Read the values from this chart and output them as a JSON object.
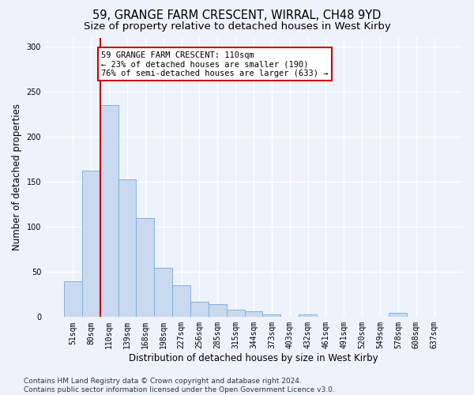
{
  "title": "59, GRANGE FARM CRESCENT, WIRRAL, CH48 9YD",
  "subtitle": "Size of property relative to detached houses in West Kirby",
  "xlabel": "Distribution of detached houses by size in West Kirby",
  "ylabel": "Number of detached properties",
  "bar_values": [
    40,
    162,
    235,
    153,
    110,
    55,
    35,
    17,
    14,
    8,
    6,
    3,
    0,
    3,
    0,
    0,
    0,
    0,
    5,
    0,
    0
  ],
  "bar_labels": [
    "51sqm",
    "80sqm",
    "110sqm",
    "139sqm",
    "168sqm",
    "198sqm",
    "227sqm",
    "256sqm",
    "285sqm",
    "315sqm",
    "344sqm",
    "373sqm",
    "403sqm",
    "432sqm",
    "461sqm",
    "491sqm",
    "520sqm",
    "549sqm",
    "578sqm",
    "608sqm",
    "637sqm"
  ],
  "highlight_bar_index": 2,
  "bar_color": "#c9d9ef",
  "bar_edge_color": "#7baad4",
  "highlight_line_color": "#cc0000",
  "annotation_text": "59 GRANGE FARM CRESCENT: 110sqm\n← 23% of detached houses are smaller (190)\n76% of semi-detached houses are larger (633) →",
  "annotation_box_facecolor": "#ffffff",
  "annotation_box_edgecolor": "#cc0000",
  "ylim": [
    0,
    310
  ],
  "yticks": [
    0,
    50,
    100,
    150,
    200,
    250,
    300
  ],
  "footer": "Contains HM Land Registry data © Crown copyright and database right 2024.\nContains public sector information licensed under the Open Government Licence v3.0.",
  "background_color": "#eef2fb",
  "grid_color": "#ffffff",
  "title_fontsize": 10.5,
  "subtitle_fontsize": 9.5,
  "ylabel_fontsize": 8.5,
  "xlabel_fontsize": 8.5,
  "tick_fontsize": 7,
  "footer_fontsize": 6.5,
  "annotation_fontsize": 7.5
}
